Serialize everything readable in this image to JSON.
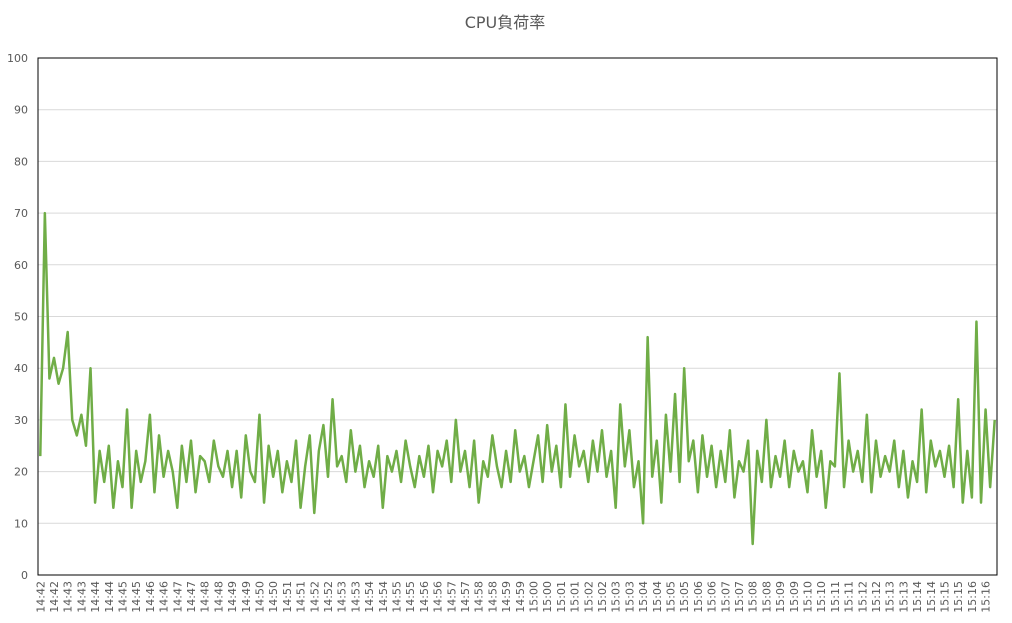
{
  "chart_data": {
    "type": "line",
    "title": "CPU負荷率",
    "categories": [
      "14:42",
      null,
      null,
      "14:42",
      null,
      null,
      "14:43",
      null,
      null,
      "14:43",
      null,
      null,
      "14:44",
      null,
      null,
      "14:44",
      null,
      null,
      "14:45",
      null,
      null,
      "14:45",
      null,
      null,
      "14:46",
      null,
      null,
      "14:46",
      null,
      null,
      "14:47",
      null,
      null,
      "14:47",
      null,
      null,
      "14:48",
      null,
      null,
      "14:48",
      null,
      null,
      "14:49",
      null,
      null,
      "14:49",
      null,
      null,
      "14:50",
      null,
      null,
      "14:50",
      null,
      null,
      "14:51",
      null,
      null,
      "14:51",
      null,
      null,
      "14:52",
      null,
      null,
      "14:52",
      null,
      null,
      "14:53",
      null,
      null,
      "14:53",
      null,
      null,
      "14:54",
      null,
      null,
      "14:54",
      null,
      null,
      "14:55",
      null,
      null,
      "14:55",
      null,
      null,
      "14:56",
      null,
      null,
      "14:56",
      null,
      null,
      "14:57",
      null,
      null,
      "14:57",
      null,
      null,
      "14:58",
      null,
      null,
      "14:58",
      null,
      null,
      "14:59",
      null,
      null,
      "14:59",
      null,
      null,
      "15:00",
      null,
      null,
      "15:00",
      null,
      null,
      "15:01",
      null,
      null,
      "15:01",
      null,
      null,
      "15:02",
      null,
      null,
      "15:02",
      null,
      null,
      "15:03",
      null,
      null,
      "15:03",
      null,
      null,
      "15:04",
      null,
      null,
      "15:04",
      null,
      null,
      "15:05",
      null,
      null,
      "15:05",
      null,
      null,
      "15:06",
      null,
      null,
      "15:06",
      null,
      null,
      "15:07",
      null,
      null,
      "15:07",
      null,
      null,
      "15:08",
      null,
      null,
      "15:08",
      null,
      null,
      "15:09",
      null,
      null,
      "15:09",
      null,
      null,
      "15:10",
      null,
      null,
      "15:10",
      null,
      null,
      "15:11",
      null,
      null,
      "15:11",
      null,
      null,
      "15:12",
      null,
      null,
      "15:12",
      null,
      null,
      "15:13",
      null,
      null,
      "15:13",
      null,
      null,
      "15:14",
      null,
      null,
      "15:14",
      null,
      null,
      "15:15",
      null,
      null,
      "15:15",
      null,
      null,
      "15:16",
      null,
      null,
      "15:16",
      null,
      null
    ],
    "values": [
      23,
      70,
      38,
      42,
      37,
      40,
      47,
      30,
      27,
      31,
      25,
      40,
      14,
      24,
      18,
      25,
      13,
      22,
      17,
      32,
      13,
      24,
      18,
      22,
      31,
      16,
      27,
      19,
      24,
      20,
      13,
      25,
      18,
      26,
      16,
      23,
      22,
      18,
      26,
      21,
      19,
      24,
      17,
      24,
      15,
      27,
      20,
      18,
      31,
      14,
      25,
      19,
      24,
      16,
      22,
      18,
      26,
      13,
      21,
      27,
      12,
      24,
      29,
      19,
      34,
      21,
      23,
      18,
      28,
      20,
      25,
      17,
      22,
      19,
      25,
      13,
      23,
      20,
      24,
      18,
      26,
      21,
      17,
      23,
      19,
      25,
      16,
      24,
      21,
      26,
      18,
      30,
      20,
      24,
      17,
      26,
      14,
      22,
      19,
      27,
      21,
      17,
      24,
      18,
      28,
      20,
      23,
      17,
      22,
      27,
      18,
      29,
      20,
      25,
      17,
      33,
      19,
      27,
      21,
      24,
      18,
      26,
      20,
      28,
      19,
      24,
      13,
      33,
      21,
      28,
      17,
      22,
      10,
      46,
      19,
      26,
      14,
      31,
      20,
      35,
      18,
      40,
      22,
      26,
      16,
      27,
      19,
      25,
      17,
      24,
      18,
      28,
      15,
      22,
      20,
      26,
      6,
      24,
      18,
      30,
      17,
      23,
      19,
      26,
      17,
      24,
      20,
      22,
      16,
      28,
      19,
      24,
      13,
      22,
      21,
      39,
      17,
      26,
      20,
      24,
      18,
      31,
      16,
      26,
      19,
      23,
      20,
      26,
      17,
      24,
      15,
      22,
      18,
      32,
      16,
      26,
      21,
      24,
      19,
      25,
      17,
      34,
      14,
      24,
      15,
      49,
      14,
      32,
      17,
      30
    ],
    "color": "#70ad47",
    "ylim": [
      0,
      100
    ],
    "yticks": [
      0,
      10,
      20,
      30,
      40,
      50,
      60,
      70,
      80,
      90,
      100
    ],
    "grid": true
  }
}
